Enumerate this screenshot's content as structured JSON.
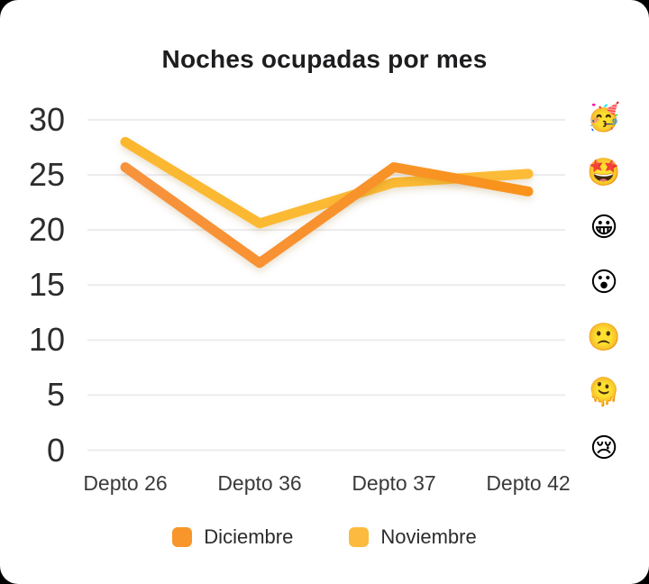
{
  "title": "Noches ocupadas por mes",
  "chart_data": {
    "type": "line",
    "title": "Noches ocupadas por mes",
    "categories": [
      "Depto 26",
      "Depto 36",
      "Depto 37",
      "Depto 42"
    ],
    "series": [
      {
        "name": "Diciembre",
        "color": "#F8962B",
        "gradient": [
          "#F7923E",
          "#F9931C"
        ],
        "values": [
          25.7,
          17,
          25.7,
          23.5
        ]
      },
      {
        "name": "Noviembre",
        "color": "#FCBA3E",
        "gradient": [
          "#FBB72F",
          "#FCBC38"
        ],
        "values": [
          28,
          20.6,
          24.3,
          25.1
        ]
      }
    ],
    "y_ticks": [
      30,
      25,
      20,
      15,
      10,
      5,
      0
    ],
    "ylim": [
      0,
      30
    ],
    "grid": "horizontal",
    "legend_position": "bottom",
    "emoji_axis": {
      "position": "right",
      "labels": [
        "🥳",
        "🤩",
        "😀",
        "😮",
        "🙁",
        "🫠",
        "😢"
      ]
    }
  },
  "colors": {
    "grid": "#ECECEE",
    "title_text": "#1D1D1F",
    "tick_text": "#2C2C2E",
    "card_bg": "#FFFFFF"
  }
}
